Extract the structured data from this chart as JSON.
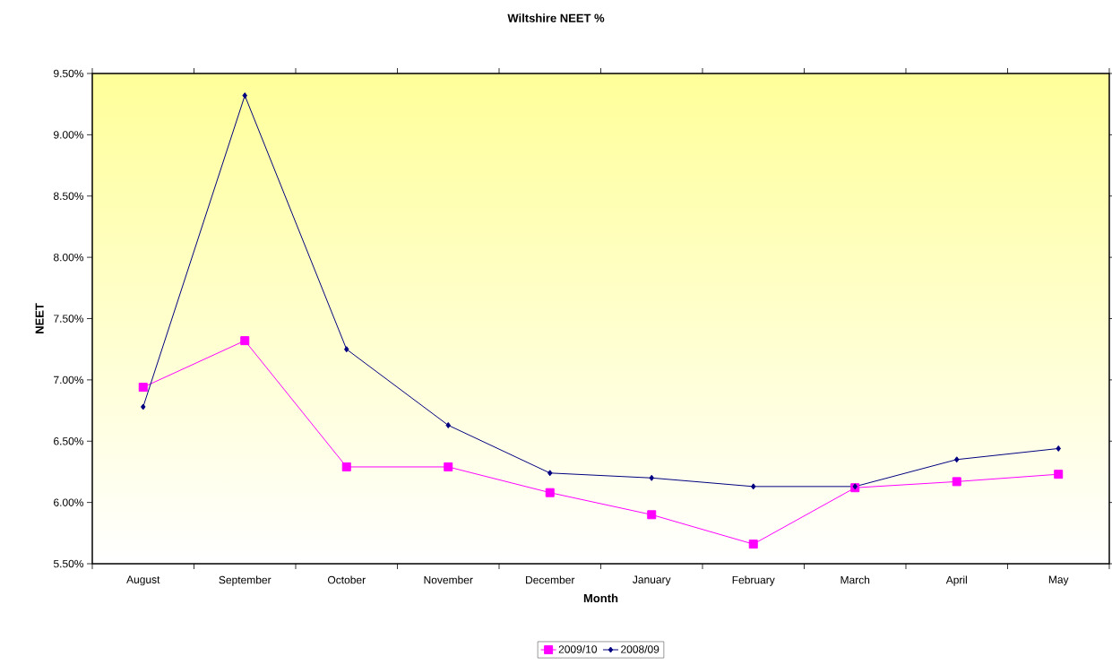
{
  "chart_data": {
    "type": "line",
    "title": "Wiltshire NEET %",
    "xlabel": "Month",
    "ylabel": "NEET",
    "categories": [
      "August",
      "September",
      "October",
      "November",
      "December",
      "January",
      "February",
      "March",
      "April",
      "May"
    ],
    "series": [
      {
        "name": "2009/10",
        "color": "#ff00ff",
        "marker": "square",
        "values": [
          6.94,
          7.32,
          6.29,
          6.29,
          6.08,
          5.9,
          5.66,
          6.12,
          6.17,
          6.23
        ]
      },
      {
        "name": "2008/09",
        "color": "#000080",
        "marker": "diamond",
        "values": [
          6.78,
          9.32,
          7.25,
          6.63,
          6.24,
          6.2,
          6.13,
          6.13,
          6.35,
          6.44
        ]
      }
    ],
    "ylim": [
      5.5,
      9.5
    ],
    "yticks": [
      {
        "value": 5.5,
        "label": "5.50%"
      },
      {
        "value": 6.0,
        "label": "6.00%"
      },
      {
        "value": 6.5,
        "label": "6.50%"
      },
      {
        "value": 7.0,
        "label": "7.00%"
      },
      {
        "value": 7.5,
        "label": "7.50%"
      },
      {
        "value": 8.0,
        "label": "8.00%"
      },
      {
        "value": 8.5,
        "label": "8.50%"
      },
      {
        "value": 9.0,
        "label": "9.00%"
      },
      {
        "value": 9.5,
        "label": "9.50%"
      }
    ],
    "legend": "bottom"
  }
}
